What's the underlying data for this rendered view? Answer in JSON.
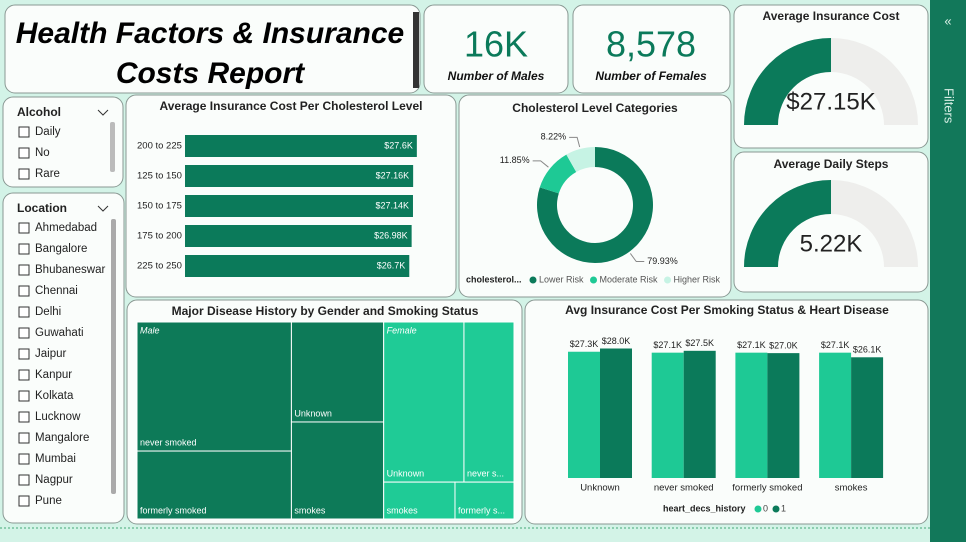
{
  "title": "Health Factors & Insurance Costs Report",
  "cards": [
    {
      "value": "16K",
      "label": "Number of Males"
    },
    {
      "value": "8,578",
      "label": "Number of Females"
    }
  ],
  "slicers": [
    {
      "title": "Alcohol",
      "items": [
        "Daily",
        "No",
        "Rare"
      ]
    },
    {
      "title": "Location",
      "items": [
        "Ahmedabad",
        "Bangalore",
        "Bhubaneswar",
        "Chennai",
        "Delhi",
        "Guwahati",
        "Jaipur",
        "Kanpur",
        "Kolkata",
        "Lucknow",
        "Mangalore",
        "Mumbai",
        "Nagpur",
        "Pune"
      ]
    }
  ],
  "filters_pane": "Filters",
  "chart_data": [
    {
      "type": "gauge",
      "title": "Average Insurance Cost",
      "value": 27150,
      "value_label": "$27.15K",
      "ylim": [
        0,
        54300
      ],
      "color": "#0b7a5a",
      "track_color": "#eeeeec"
    },
    {
      "type": "gauge",
      "title": "Average Daily Steps",
      "value": 5220,
      "value_label": "5.22K",
      "ylim": [
        0,
        10440
      ],
      "color": "#0b7a5a",
      "track_color": "#eeeeec"
    },
    {
      "type": "hbar",
      "title": "Average Insurance Cost Per Cholesterol Level",
      "categories": [
        "200 to 225",
        "125 to 150",
        "150 to 175",
        "175 to 200",
        "225 to 250"
      ],
      "values": [
        27600,
        27160,
        27140,
        26980,
        26700
      ],
      "value_labels": [
        "$27.6K",
        "$27.16K",
        "$27.14K",
        "$26.98K",
        "$26.7K"
      ],
      "xlim": [
        0,
        30000
      ],
      "color": "#0b7a5a"
    },
    {
      "type": "donut",
      "title": "Cholesterol Level Categories",
      "legend_title": "cholesterol...",
      "categories": [
        "Lower Risk",
        "Moderate Risk",
        "Higher Risk"
      ],
      "values": [
        79.93,
        11.85,
        8.22
      ],
      "value_labels": [
        "79.93%",
        "11.85%",
        "8.22%"
      ],
      "colors": [
        "#0b7a5a",
        "#1ec995",
        "#c6f3e4"
      ]
    },
    {
      "type": "treemap",
      "title": "Major Disease History by Gender and Smoking Status",
      "groups": [
        {
          "name": "Male",
          "color": "#0d7a58",
          "labels": [
            "never smoked",
            "formerly smoked",
            "Unknown",
            "smokes"
          ],
          "values": [
            6590,
            3470,
            3050,
            2960
          ]
        },
        {
          "name": "Female",
          "color": "#1fcb96",
          "labels": [
            "Unknown",
            "never s...",
            "smokes",
            "formerly s..."
          ],
          "values": [
            4250,
            2650,
            870,
            720
          ]
        }
      ]
    },
    {
      "type": "column",
      "title": "Avg Insurance Cost Per Smoking Status & Heart Disease",
      "legend_title": "heart_decs_history",
      "categories": [
        "Unknown",
        "never smoked",
        "formerly smoked",
        "smokes"
      ],
      "ylim": [
        0,
        32000
      ],
      "series": [
        {
          "name": "0",
          "color": "#1ec995",
          "values": [
            27300,
            27100,
            27100,
            27100
          ],
          "value_labels": [
            "$27.3K",
            "$27.1K",
            "$27.1K",
            "$27.1K"
          ]
        },
        {
          "name": "1",
          "color": "#0b7a5a",
          "values": [
            28000,
            27500,
            27000,
            26100
          ],
          "value_labels": [
            "$28.0K",
            "$27.5K",
            "$27.0K",
            "$26.1K"
          ]
        }
      ]
    }
  ]
}
